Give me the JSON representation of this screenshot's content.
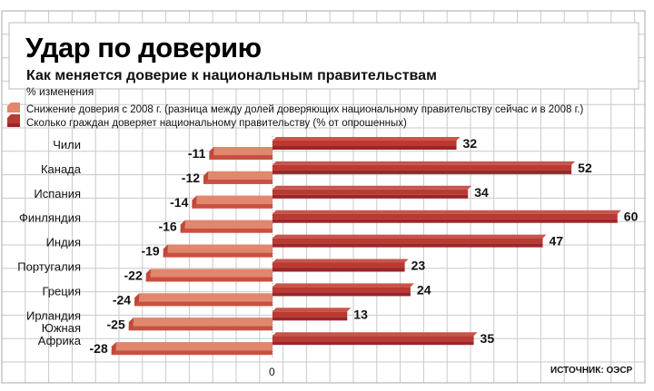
{
  "chart_data": {
    "type": "bar",
    "title": "Удар по доверию",
    "subtitle": "Как меняется доверие к национальным правительствам",
    "unit_label": "% изменения",
    "categories": [
      "Чили",
      "Канада",
      "Испания",
      "Финляндия",
      "Индия",
      "Португалия",
      "Греция",
      "Ирландия",
      "Южная Африка"
    ],
    "series": [
      {
        "name": "Снижение доверия с 2008 г. (разница между долей доверяющих национальному правительству сейчас и в 2008 г.)",
        "color": "#e0876e",
        "values": [
          -11,
          -12,
          -14,
          -16,
          -19,
          -22,
          -24,
          -25,
          -28
        ]
      },
      {
        "name": "Сколько граждан доверяет  национальному правительству (% от опрошенных)",
        "color": "#b83a33",
        "values": [
          32,
          52,
          34,
          60,
          47,
          23,
          24,
          13,
          35
        ]
      }
    ],
    "x_tick_labels": [
      "0"
    ],
    "xlim": [
      -30,
      62
    ],
    "grid": true,
    "legend": "top-left",
    "source": "ИСТОЧНИК: ОЭСР"
  }
}
